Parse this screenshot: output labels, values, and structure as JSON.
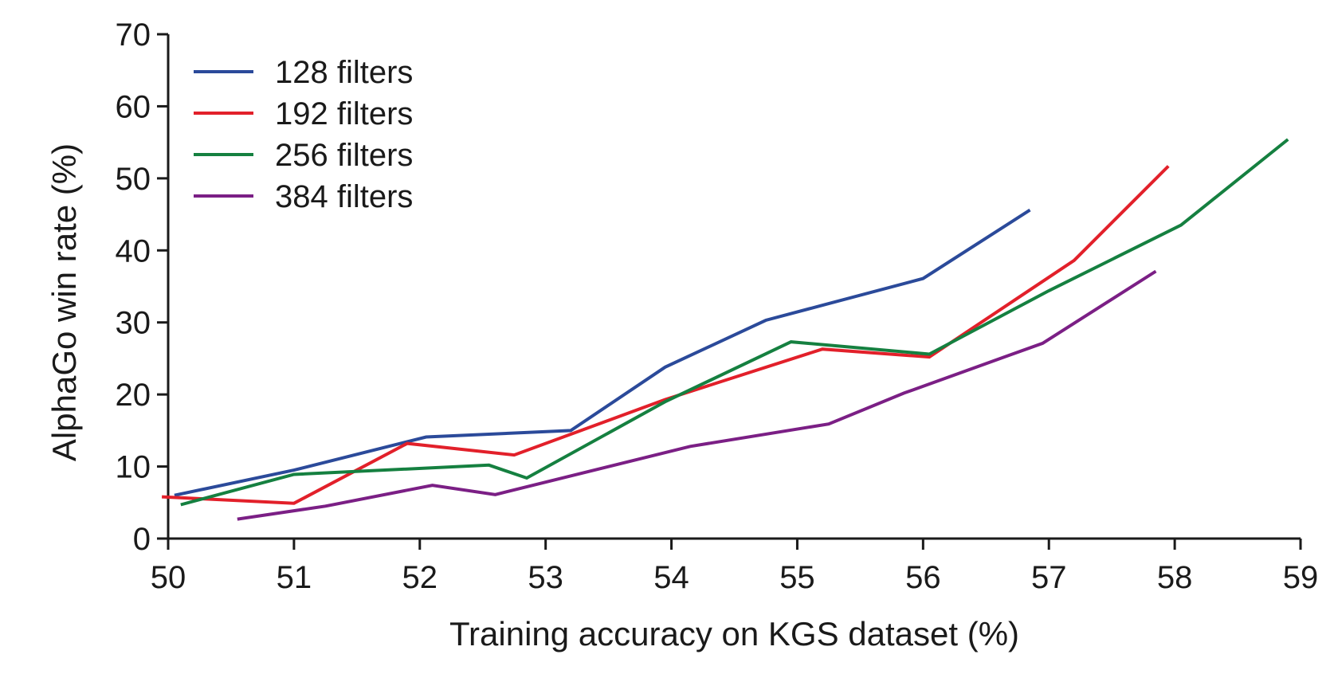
{
  "chart_data": {
    "type": "line",
    "xlabel": "Training accuracy on KGS dataset (%)",
    "ylabel": "AlphaGo win rate (%)",
    "xlim": [
      50,
      59
    ],
    "ylim": [
      0,
      70
    ],
    "xticks": [
      50,
      51,
      52,
      53,
      54,
      55,
      56,
      57,
      58,
      59
    ],
    "yticks": [
      0,
      10,
      20,
      30,
      40,
      50,
      60,
      70
    ],
    "grid": false,
    "legend_position": "top-left",
    "series": [
      {
        "name": "128 filters",
        "color": "#2b4a9a",
        "points": [
          [
            50.05,
            6.0
          ],
          [
            51.0,
            9.5
          ],
          [
            52.05,
            14.1
          ],
          [
            53.2,
            15.0
          ],
          [
            53.95,
            23.8
          ],
          [
            54.75,
            30.3
          ],
          [
            56.0,
            36.1
          ],
          [
            56.85,
            45.6
          ]
        ]
      },
      {
        "name": "192 filters",
        "color": "#e2202a",
        "points": [
          [
            49.95,
            5.8
          ],
          [
            51.0,
            4.9
          ],
          [
            51.9,
            13.2
          ],
          [
            52.75,
            11.6
          ],
          [
            53.95,
            19.3
          ],
          [
            55.2,
            26.3
          ],
          [
            56.05,
            25.2
          ],
          [
            57.2,
            38.6
          ],
          [
            57.95,
            51.7
          ]
        ]
      },
      {
        "name": "256 filters",
        "color": "#158040",
        "points": [
          [
            50.1,
            4.7
          ],
          [
            51.0,
            8.9
          ],
          [
            52.55,
            10.2
          ],
          [
            52.85,
            8.4
          ],
          [
            53.95,
            19.0
          ],
          [
            54.95,
            27.3
          ],
          [
            56.05,
            25.6
          ],
          [
            57.0,
            34.4
          ],
          [
            58.05,
            43.5
          ],
          [
            58.9,
            55.4
          ]
        ]
      },
      {
        "name": "384 filters",
        "color": "#7b1f85",
        "points": [
          [
            50.55,
            2.7
          ],
          [
            51.25,
            4.5
          ],
          [
            52.1,
            7.4
          ],
          [
            52.6,
            6.1
          ],
          [
            54.15,
            12.8
          ],
          [
            55.25,
            15.9
          ],
          [
            55.85,
            20.2
          ],
          [
            56.95,
            27.1
          ],
          [
            57.85,
            37.1
          ]
        ]
      }
    ]
  }
}
